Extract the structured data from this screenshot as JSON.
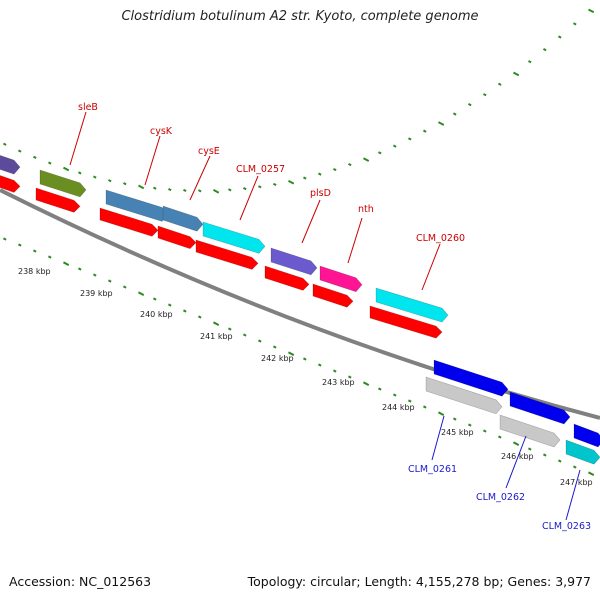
{
  "title": "Clostridium botulinum A2 str. Kyoto, complete genome",
  "footer": {
    "accession": "Accession: NC_012563",
    "stats": "Topology: circular; Length: 4,155,278 bp; Genes: 3,977"
  },
  "colors": {
    "backbone": "#808080",
    "tick": "#2e8b22",
    "cds": "#ff0000",
    "label_forward": "#cc0000",
    "label_reverse": "#1a1acc"
  },
  "scale_labels": [
    "238 kbp",
    "239 kbp",
    "240 kbp",
    "241 kbp",
    "242 kbp",
    "243 kbp",
    "244 kbp",
    "245 kbp",
    "246 kbp",
    "247 kbp"
  ],
  "forward_labels": [
    "sleB",
    "cysK",
    "cysE",
    "CLM_0257",
    "plsD",
    "nth",
    "CLM_0260"
  ],
  "reverse_labels": [
    "CLM_0261",
    "CLM_0262",
    "CLM_0263"
  ],
  "genes_top": [
    {
      "color": "#5b4b9a"
    },
    {
      "color": "#6b8e23"
    },
    {
      "color": "#4682b4"
    },
    {
      "color": "#4682b4"
    },
    {
      "color": "#00e5ee"
    },
    {
      "color": "#6a5acd"
    },
    {
      "color": "#ff1493"
    },
    {
      "color": "#00e5ee"
    },
    {
      "color": "#0000ee"
    },
    {
      "color": "#c8c8c8"
    },
    {
      "color": "#0000ee"
    },
    {
      "color": "#c8c8c8"
    },
    {
      "color": "#0000ee"
    },
    {
      "color": "#00c5cd"
    }
  ]
}
